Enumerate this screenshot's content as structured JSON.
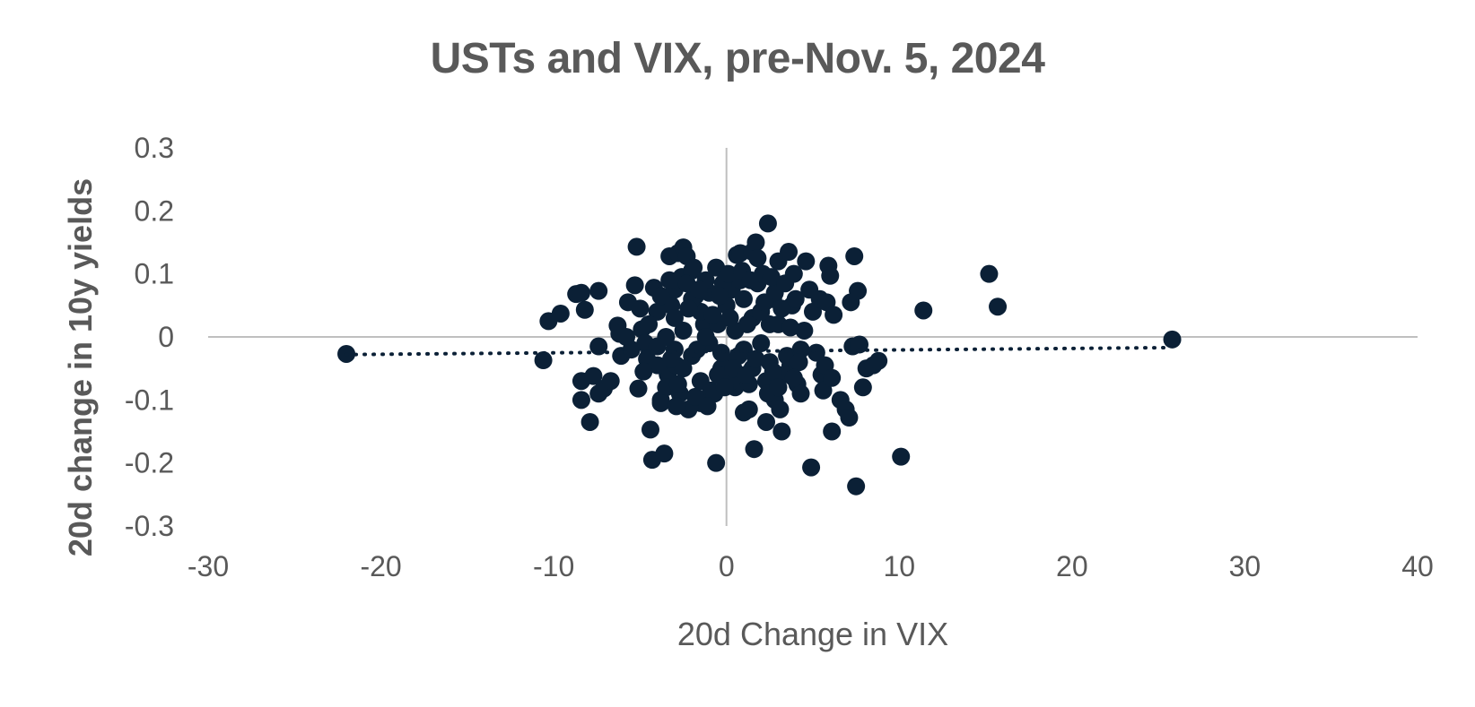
{
  "chart_data": {
    "type": "scatter",
    "title": "USTs and VIX, pre-Nov. 5, 2024",
    "xlabel": "20d Change in VIX",
    "ylabel": "20d change in 10y yields",
    "xlim": [
      -30,
      40
    ],
    "ylim": [
      -0.3,
      0.3
    ],
    "x_ticks": [
      "-30",
      "-20",
      "-10",
      "0",
      "10",
      "20",
      "30",
      "40"
    ],
    "y_ticks": [
      "0.3",
      "0.2",
      "0.1",
      "0",
      "-0.1",
      "-0.2",
      "-0.3"
    ],
    "x_tick_values": [
      -30,
      -20,
      -10,
      0,
      10,
      20,
      30,
      40
    ],
    "y_tick_values": [
      0.3,
      0.2,
      0.1,
      0,
      -0.1,
      -0.2,
      -0.3
    ],
    "grid": false,
    "legend": "none",
    "marker_color": "#0b2036",
    "axis_color": "#bfbfbf",
    "trendline": {
      "style": "dotted",
      "x": [
        -22,
        25.5
      ],
      "y": [
        -0.028,
        -0.017
      ]
    },
    "points": [
      [
        -22,
        -0.027
      ],
      [
        25.8,
        -0.004
      ],
      [
        15.2,
        0.1
      ],
      [
        15.7,
        0.048
      ],
      [
        11.4,
        0.042
      ],
      [
        10.1,
        -0.19
      ],
      [
        -10.6,
        -0.037
      ],
      [
        -10.3,
        0.025
      ],
      [
        -9.6,
        0.037
      ],
      [
        -8.7,
        0.068
      ],
      [
        -8.4,
        0.07
      ],
      [
        -8.2,
        0.043
      ],
      [
        -8.4,
        -0.07
      ],
      [
        -8.4,
        -0.1
      ],
      [
        -7.9,
        -0.135
      ],
      [
        -7.7,
        -0.062
      ],
      [
        -7.4,
        -0.09
      ],
      [
        -7.4,
        0.073
      ],
      [
        -7.4,
        -0.015
      ],
      [
        -7.1,
        -0.082
      ],
      [
        -6.7,
        -0.07
      ],
      [
        -6.3,
        0.018
      ],
      [
        -6.1,
        -0.03
      ],
      [
        -6.2,
        0.005
      ],
      [
        -5.7,
        0.055
      ],
      [
        -5.2,
        0.143
      ],
      [
        -5.3,
        0.082
      ],
      [
        -5.1,
        -0.082
      ],
      [
        -4.9,
        0.012
      ],
      [
        -4.7,
        -0.01
      ],
      [
        -4.4,
        -0.147
      ],
      [
        -4.3,
        -0.195
      ],
      [
        -4.2,
        0.078
      ],
      [
        -4.6,
        -0.035
      ],
      [
        -3.6,
        -0.185
      ],
      [
        -3.3,
        0.128
      ],
      [
        -2.8,
        0.133
      ],
      [
        -2.5,
        0.142
      ],
      [
        -2.3,
        0.128
      ],
      [
        -3.8,
        -0.1
      ],
      [
        -3.4,
        -0.06
      ],
      [
        -3.2,
        0.05
      ],
      [
        -2.9,
        -0.045
      ],
      [
        -2.6,
        0.095
      ],
      [
        -2.2,
        -0.115
      ],
      [
        -2.0,
        0.105
      ],
      [
        -1.8,
        0.065
      ],
      [
        -1.5,
        -0.105
      ],
      [
        -1.3,
        0.02
      ],
      [
        -0.9,
        -0.085
      ],
      [
        -0.6,
        0.11
      ],
      [
        -0.6,
        -0.2
      ],
      [
        -0.3,
        -0.05
      ],
      [
        0.3,
        0.075
      ],
      [
        0.6,
        0.13
      ],
      [
        0.8,
        0.133
      ],
      [
        1.0,
        -0.12
      ],
      [
        1.3,
        -0.115
      ],
      [
        1.5,
        0.135
      ],
      [
        1.6,
        -0.178
      ],
      [
        1.7,
        0.15
      ],
      [
        1.8,
        0.125
      ],
      [
        2.3,
        -0.135
      ],
      [
        2.4,
        0.18
      ],
      [
        2.7,
        0.06
      ],
      [
        2.8,
        -0.1
      ],
      [
        3.0,
        0.12
      ],
      [
        3.1,
        -0.115
      ],
      [
        3.2,
        -0.15
      ],
      [
        3.6,
        0.135
      ],
      [
        3.7,
        -0.045
      ],
      [
        3.9,
        0.1
      ],
      [
        4.1,
        -0.075
      ],
      [
        4.3,
        -0.09
      ],
      [
        4.6,
        0.12
      ],
      [
        4.8,
        0.075
      ],
      [
        4.9,
        -0.207
      ],
      [
        5.0,
        0.04
      ],
      [
        5.2,
        -0.025
      ],
      [
        5.4,
        0.06
      ],
      [
        5.5,
        -0.06
      ],
      [
        5.6,
        -0.085
      ],
      [
        5.7,
        -0.045
      ],
      [
        5.8,
        0.055
      ],
      [
        5.9,
        0.113
      ],
      [
        6.0,
        0.097
      ],
      [
        6.1,
        -0.065
      ],
      [
        6.1,
        -0.15
      ],
      [
        6.2,
        0.035
      ],
      [
        6.6,
        -0.1
      ],
      [
        6.9,
        -0.115
      ],
      [
        7.1,
        -0.128
      ],
      [
        7.2,
        0.055
      ],
      [
        7.3,
        -0.015
      ],
      [
        7.4,
        0.128
      ],
      [
        7.5,
        -0.237
      ],
      [
        7.6,
        0.073
      ],
      [
        7.7,
        -0.012
      ],
      [
        7.9,
        -0.08
      ],
      [
        8.1,
        -0.05
      ],
      [
        8.5,
        -0.045
      ],
      [
        8.8,
        -0.038
      ],
      [
        -3.0,
        -0.02
      ],
      [
        -2.5,
        0.01
      ],
      [
        -2.0,
        -0.03
      ],
      [
        -1.5,
        0.04
      ],
      [
        -1.0,
        -0.01
      ],
      [
        -0.5,
        0.02
      ],
      [
        0.0,
        -0.04
      ],
      [
        0.5,
        0.01
      ],
      [
        1.0,
        -0.02
      ],
      [
        1.5,
        0.03
      ],
      [
        2.0,
        -0.01
      ],
      [
        2.5,
        0.02
      ],
      [
        -3.5,
        0.0
      ],
      [
        -3.0,
        0.03
      ],
      [
        -2.5,
        -0.05
      ],
      [
        -2.0,
        0.06
      ],
      [
        -1.5,
        -0.07
      ],
      [
        -1.0,
        0.07
      ],
      [
        -0.5,
        -0.06
      ],
      [
        0.0,
        0.05
      ],
      [
        0.5,
        -0.08
      ],
      [
        1.0,
        0.06
      ],
      [
        1.5,
        -0.05
      ],
      [
        2.0,
        0.04
      ],
      [
        2.5,
        -0.04
      ],
      [
        3.0,
        0.02
      ],
      [
        3.5,
        -0.03
      ],
      [
        -4.0,
        -0.045
      ],
      [
        -4.0,
        0.04
      ],
      [
        -3.5,
        -0.08
      ],
      [
        -3.0,
        0.075
      ],
      [
        -2.7,
        -0.09
      ],
      [
        -2.3,
        0.085
      ],
      [
        -1.8,
        -0.095
      ],
      [
        -1.2,
        0.09
      ],
      [
        -0.7,
        -0.09
      ],
      [
        -0.2,
        0.085
      ],
      [
        0.3,
        -0.07
      ],
      [
        0.8,
        0.09
      ],
      [
        1.3,
        -0.075
      ],
      [
        1.8,
        0.085
      ],
      [
        2.3,
        -0.07
      ],
      [
        2.8,
        0.07
      ],
      [
        3.3,
        -0.06
      ],
      [
        3.8,
        0.05
      ],
      [
        4.3,
        -0.02
      ],
      [
        4.5,
        0.01
      ],
      [
        -4.5,
        0.02
      ],
      [
        -4.8,
        -0.055
      ],
      [
        -4.0,
        -0.015
      ],
      [
        -3.8,
        0.065
      ],
      [
        -3.2,
        -0.035
      ],
      [
        -2.8,
        -0.075
      ],
      [
        -2.2,
        0.045
      ],
      [
        -1.7,
        -0.02
      ],
      [
        -1.2,
        0.0
      ],
      [
        -0.8,
        0.035
      ],
      [
        -0.3,
        -0.025
      ],
      [
        0.2,
        0.03
      ],
      [
        0.7,
        -0.03
      ],
      [
        1.2,
        0.02
      ],
      [
        1.7,
        -0.035
      ],
      [
        2.2,
        0.055
      ],
      [
        2.7,
        -0.055
      ],
      [
        3.2,
        0.045
      ],
      [
        3.7,
        0.015
      ],
      [
        -3.8,
        -0.105
      ],
      [
        -3.3,
        0.09
      ],
      [
        -2.9,
        -0.11
      ],
      [
        -1.9,
        0.11
      ],
      [
        -1.6,
        0.075
      ],
      [
        -0.4,
        0.065
      ],
      [
        0.1,
        0.1
      ],
      [
        0.9,
        0.105
      ],
      [
        1.4,
        0.09
      ],
      [
        2.1,
        0.1
      ],
      [
        2.6,
        0.095
      ],
      [
        3.4,
        0.085
      ],
      [
        4.0,
        0.06
      ],
      [
        4.2,
        -0.04
      ],
      [
        3.9,
        -0.065
      ],
      [
        -5.5,
        -0.02
      ],
      [
        -5.0,
        0.045
      ],
      [
        -5.8,
        0.0
      ],
      [
        -1.1,
        -0.11
      ],
      [
        -0.1,
        -0.08
      ],
      [
        0.4,
        -0.05
      ],
      [
        1.1,
        -0.06
      ],
      [
        2.4,
        -0.09
      ],
      [
        3.0,
        -0.08
      ]
    ]
  }
}
